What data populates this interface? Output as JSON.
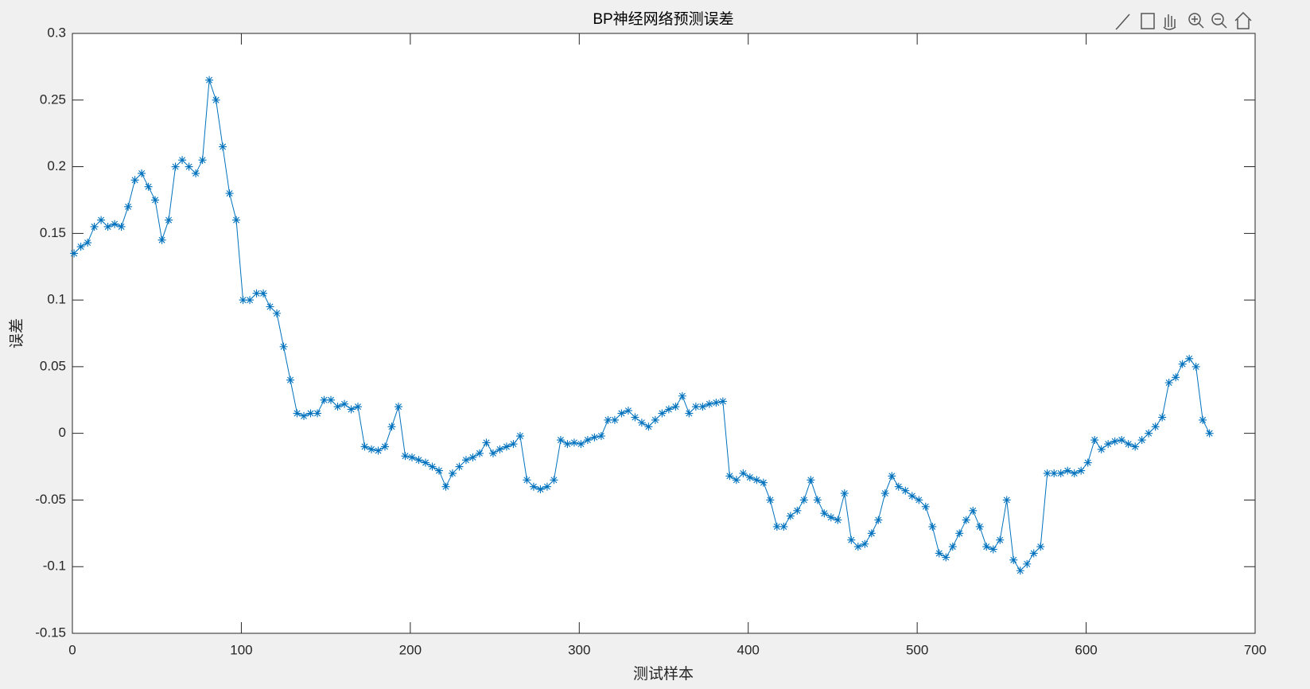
{
  "chart_data": {
    "type": "line",
    "title": "BP神经网络预测误差",
    "x_label": "测试样本",
    "y_label": "误差",
    "x": [
      1,
      5,
      9,
      13,
      17,
      21,
      25,
      29,
      33,
      37,
      41,
      45,
      49,
      53,
      57,
      61,
      65,
      69,
      73,
      77,
      81,
      85,
      89,
      93,
      97,
      101,
      105,
      109,
      113,
      117,
      121,
      125,
      129,
      133,
      137,
      141,
      145,
      149,
      153,
      157,
      161,
      165,
      169,
      173,
      177,
      181,
      185,
      189,
      193,
      197,
      201,
      205,
      209,
      213,
      217,
      221,
      225,
      229,
      233,
      237,
      241,
      245,
      249,
      253,
      257,
      261,
      265,
      269,
      273,
      277,
      281,
      285,
      289,
      293,
      297,
      301,
      305,
      309,
      313,
      317,
      321,
      325,
      329,
      333,
      337,
      341,
      345,
      349,
      353,
      357,
      361,
      365,
      369,
      373,
      377,
      381,
      385,
      389,
      393,
      397,
      401,
      405,
      409,
      413,
      417,
      421,
      425,
      429,
      433,
      437,
      441,
      445,
      449,
      453,
      457,
      461,
      465,
      469,
      473,
      477,
      481,
      485,
      489,
      493,
      497,
      501,
      505,
      509,
      513,
      517,
      521,
      525,
      529,
      533,
      537,
      541,
      545,
      549,
      553,
      557,
      561,
      565,
      569,
      573,
      577,
      581,
      585,
      589,
      593,
      597,
      601,
      605,
      609,
      613,
      617,
      621,
      625,
      629,
      633,
      637,
      641,
      645,
      649,
      653,
      657,
      661,
      665,
      669,
      673
    ],
    "series": [
      {
        "color": "#0072bd",
        "marker": "asterisk",
        "values": [
          0.135,
          0.14,
          0.143,
          0.155,
          0.16,
          0.155,
          0.157,
          0.155,
          0.17,
          0.19,
          0.195,
          0.185,
          0.175,
          0.145,
          0.16,
          0.2,
          0.205,
          0.2,
          0.195,
          0.205,
          0.265,
          0.25,
          0.215,
          0.18,
          0.16,
          0.1,
          0.1,
          0.105,
          0.105,
          0.095,
          0.09,
          0.065,
          0.04,
          0.015,
          0.013,
          0.015,
          0.015,
          0.025,
          0.025,
          0.02,
          0.022,
          0.018,
          0.02,
          -0.01,
          -0.012,
          -0.013,
          -0.01,
          0.005,
          0.02,
          -0.017,
          -0.018,
          -0.02,
          -0.022,
          -0.025,
          -0.028,
          -0.04,
          -0.03,
          -0.025,
          -0.02,
          -0.018,
          -0.015,
          -0.007,
          -0.015,
          -0.012,
          -0.01,
          -0.008,
          -0.002,
          -0.035,
          -0.04,
          -0.042,
          -0.04,
          -0.035,
          -0.005,
          -0.008,
          -0.007,
          -0.008,
          -0.005,
          -0.003,
          -0.002,
          0.01,
          0.01,
          0.015,
          0.017,
          0.012,
          0.008,
          0.005,
          0.01,
          0.015,
          0.018,
          0.02,
          0.028,
          0.015,
          0.02,
          0.02,
          0.022,
          0.023,
          0.024,
          -0.032,
          -0.035,
          -0.03,
          -0.033,
          -0.035,
          -0.037,
          -0.05,
          -0.07,
          -0.07,
          -0.062,
          -0.058,
          -0.05,
          -0.035,
          -0.05,
          -0.06,
          -0.063,
          -0.065,
          -0.045,
          -0.08,
          -0.085,
          -0.083,
          -0.075,
          -0.065,
          -0.045,
          -0.032,
          -0.04,
          -0.043,
          -0.047,
          -0.05,
          -0.055,
          -0.07,
          -0.09,
          -0.093,
          -0.085,
          -0.075,
          -0.065,
          -0.058,
          -0.07,
          -0.085,
          -0.087,
          -0.08,
          -0.05,
          -0.095,
          -0.103,
          -0.098,
          -0.09,
          -0.085,
          -0.03,
          -0.03,
          -0.03,
          -0.028,
          -0.03,
          -0.028,
          -0.022,
          -0.005,
          -0.012,
          -0.008,
          -0.006,
          -0.005,
          -0.008,
          -0.01,
          -0.005,
          0.0,
          0.005,
          0.012,
          0.038,
          0.042,
          0.052,
          0.056,
          0.05,
          0.01,
          0.0
        ]
      }
    ],
    "xlim": [
      0,
      700
    ],
    "xticks": [
      0,
      100,
      200,
      300,
      400,
      500,
      600,
      700
    ],
    "ylim": [
      -0.15,
      0.3
    ],
    "yticks": [
      -0.15,
      -0.1,
      -0.05,
      0,
      0.05,
      0.1,
      0.15,
      0.2,
      0.25,
      0.3
    ]
  }
}
